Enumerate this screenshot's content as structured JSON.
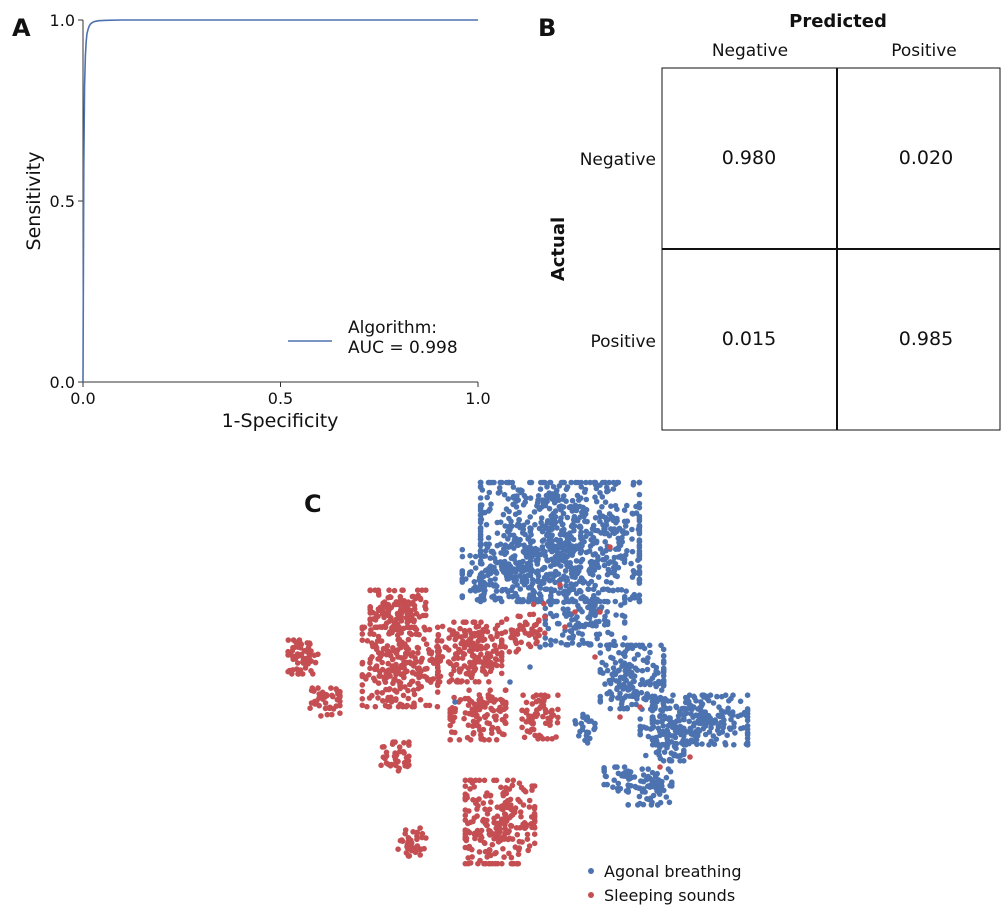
{
  "panels": {
    "a": {
      "letter": "A"
    },
    "b": {
      "letter": "B"
    },
    "c": {
      "letter": "C"
    }
  },
  "chart_data": [
    {
      "type": "line",
      "panel": "A",
      "title": "",
      "xlabel": "1-Specificity",
      "ylabel": "Sensitivity",
      "xlim": [
        0.0,
        1.0
      ],
      "ylim": [
        0.0,
        1.0
      ],
      "xticks": [
        "0.0",
        "0.5",
        "1.0"
      ],
      "yticks": [
        "0.0",
        "0.5",
        "1.0"
      ],
      "grid": false,
      "legend_position": "bottom-right",
      "series": [
        {
          "name": "Algorithm:\nAUC = 0.998",
          "color": "#4c72b0",
          "x": [
            0.0,
            0.002,
            0.004,
            0.006,
            0.008,
            0.01,
            0.013,
            0.016,
            0.02,
            0.025,
            0.03,
            0.04,
            0.06,
            0.1,
            0.3,
            1.0
          ],
          "y": [
            0.0,
            0.6,
            0.82,
            0.9,
            0.94,
            0.962,
            0.975,
            0.984,
            0.99,
            0.994,
            0.996,
            0.998,
            0.999,
            1.0,
            1.0,
            1.0
          ]
        }
      ]
    },
    {
      "type": "heatmap",
      "panel": "B",
      "x_title": "Predicted",
      "y_title": "Actual",
      "columns": [
        "Negative",
        "Positive"
      ],
      "rows": [
        "Negative",
        "Positive"
      ],
      "values": [
        [
          "0.980",
          "0.020"
        ],
        [
          "0.015",
          "0.985"
        ]
      ]
    },
    {
      "type": "scatter",
      "panel": "C",
      "title": "",
      "xlabel": "",
      "ylabel": "",
      "legend_position": "bottom-right",
      "series": [
        {
          "name": "Agonal breathing",
          "color": "#4c72b0"
        },
        {
          "name": "Sleeping sounds",
          "color": "#c44e52"
        }
      ],
      "clusters": [
        {
          "series": 0,
          "cx": 560,
          "cy": 75,
          "rx": 80,
          "ry": 60,
          "n": 800
        },
        {
          "series": 0,
          "cx": 500,
          "cy": 105,
          "rx": 38,
          "ry": 28,
          "n": 140
        },
        {
          "series": 0,
          "cx": 585,
          "cy": 150,
          "rx": 40,
          "ry": 28,
          "n": 140
        },
        {
          "series": 0,
          "cx": 632,
          "cy": 210,
          "rx": 32,
          "ry": 32,
          "n": 180
        },
        {
          "series": 0,
          "cx": 700,
          "cy": 253,
          "rx": 48,
          "ry": 25,
          "n": 220
        },
        {
          "series": 0,
          "cx": 662,
          "cy": 268,
          "rx": 22,
          "ry": 26,
          "n": 80
        },
        {
          "series": 0,
          "cx": 650,
          "cy": 320,
          "rx": 22,
          "ry": 18,
          "n": 70
        },
        {
          "series": 0,
          "cx": 618,
          "cy": 312,
          "rx": 14,
          "ry": 12,
          "n": 30
        },
        {
          "series": 0,
          "cx": 585,
          "cy": 260,
          "rx": 10,
          "ry": 16,
          "n": 25
        },
        {
          "series": 1,
          "cx": 398,
          "cy": 145,
          "rx": 28,
          "ry": 22,
          "n": 130
        },
        {
          "series": 1,
          "cx": 400,
          "cy": 200,
          "rx": 38,
          "ry": 40,
          "n": 260
        },
        {
          "series": 1,
          "cx": 470,
          "cy": 185,
          "rx": 32,
          "ry": 30,
          "n": 200
        },
        {
          "series": 1,
          "cx": 478,
          "cy": 248,
          "rx": 28,
          "ry": 25,
          "n": 120
        },
        {
          "series": 1,
          "cx": 540,
          "cy": 250,
          "rx": 18,
          "ry": 22,
          "n": 70
        },
        {
          "series": 1,
          "cx": 303,
          "cy": 190,
          "rx": 15,
          "ry": 17,
          "n": 60
        },
        {
          "series": 1,
          "cx": 325,
          "cy": 235,
          "rx": 15,
          "ry": 14,
          "n": 45
        },
        {
          "series": 1,
          "cx": 395,
          "cy": 290,
          "rx": 14,
          "ry": 15,
          "n": 40
        },
        {
          "series": 1,
          "cx": 500,
          "cy": 355,
          "rx": 35,
          "ry": 42,
          "n": 240
        },
        {
          "series": 1,
          "cx": 412,
          "cy": 375,
          "rx": 14,
          "ry": 14,
          "n": 40
        },
        {
          "series": 1,
          "cx": 525,
          "cy": 160,
          "rx": 20,
          "ry": 25,
          "n": 50
        }
      ]
    }
  ]
}
